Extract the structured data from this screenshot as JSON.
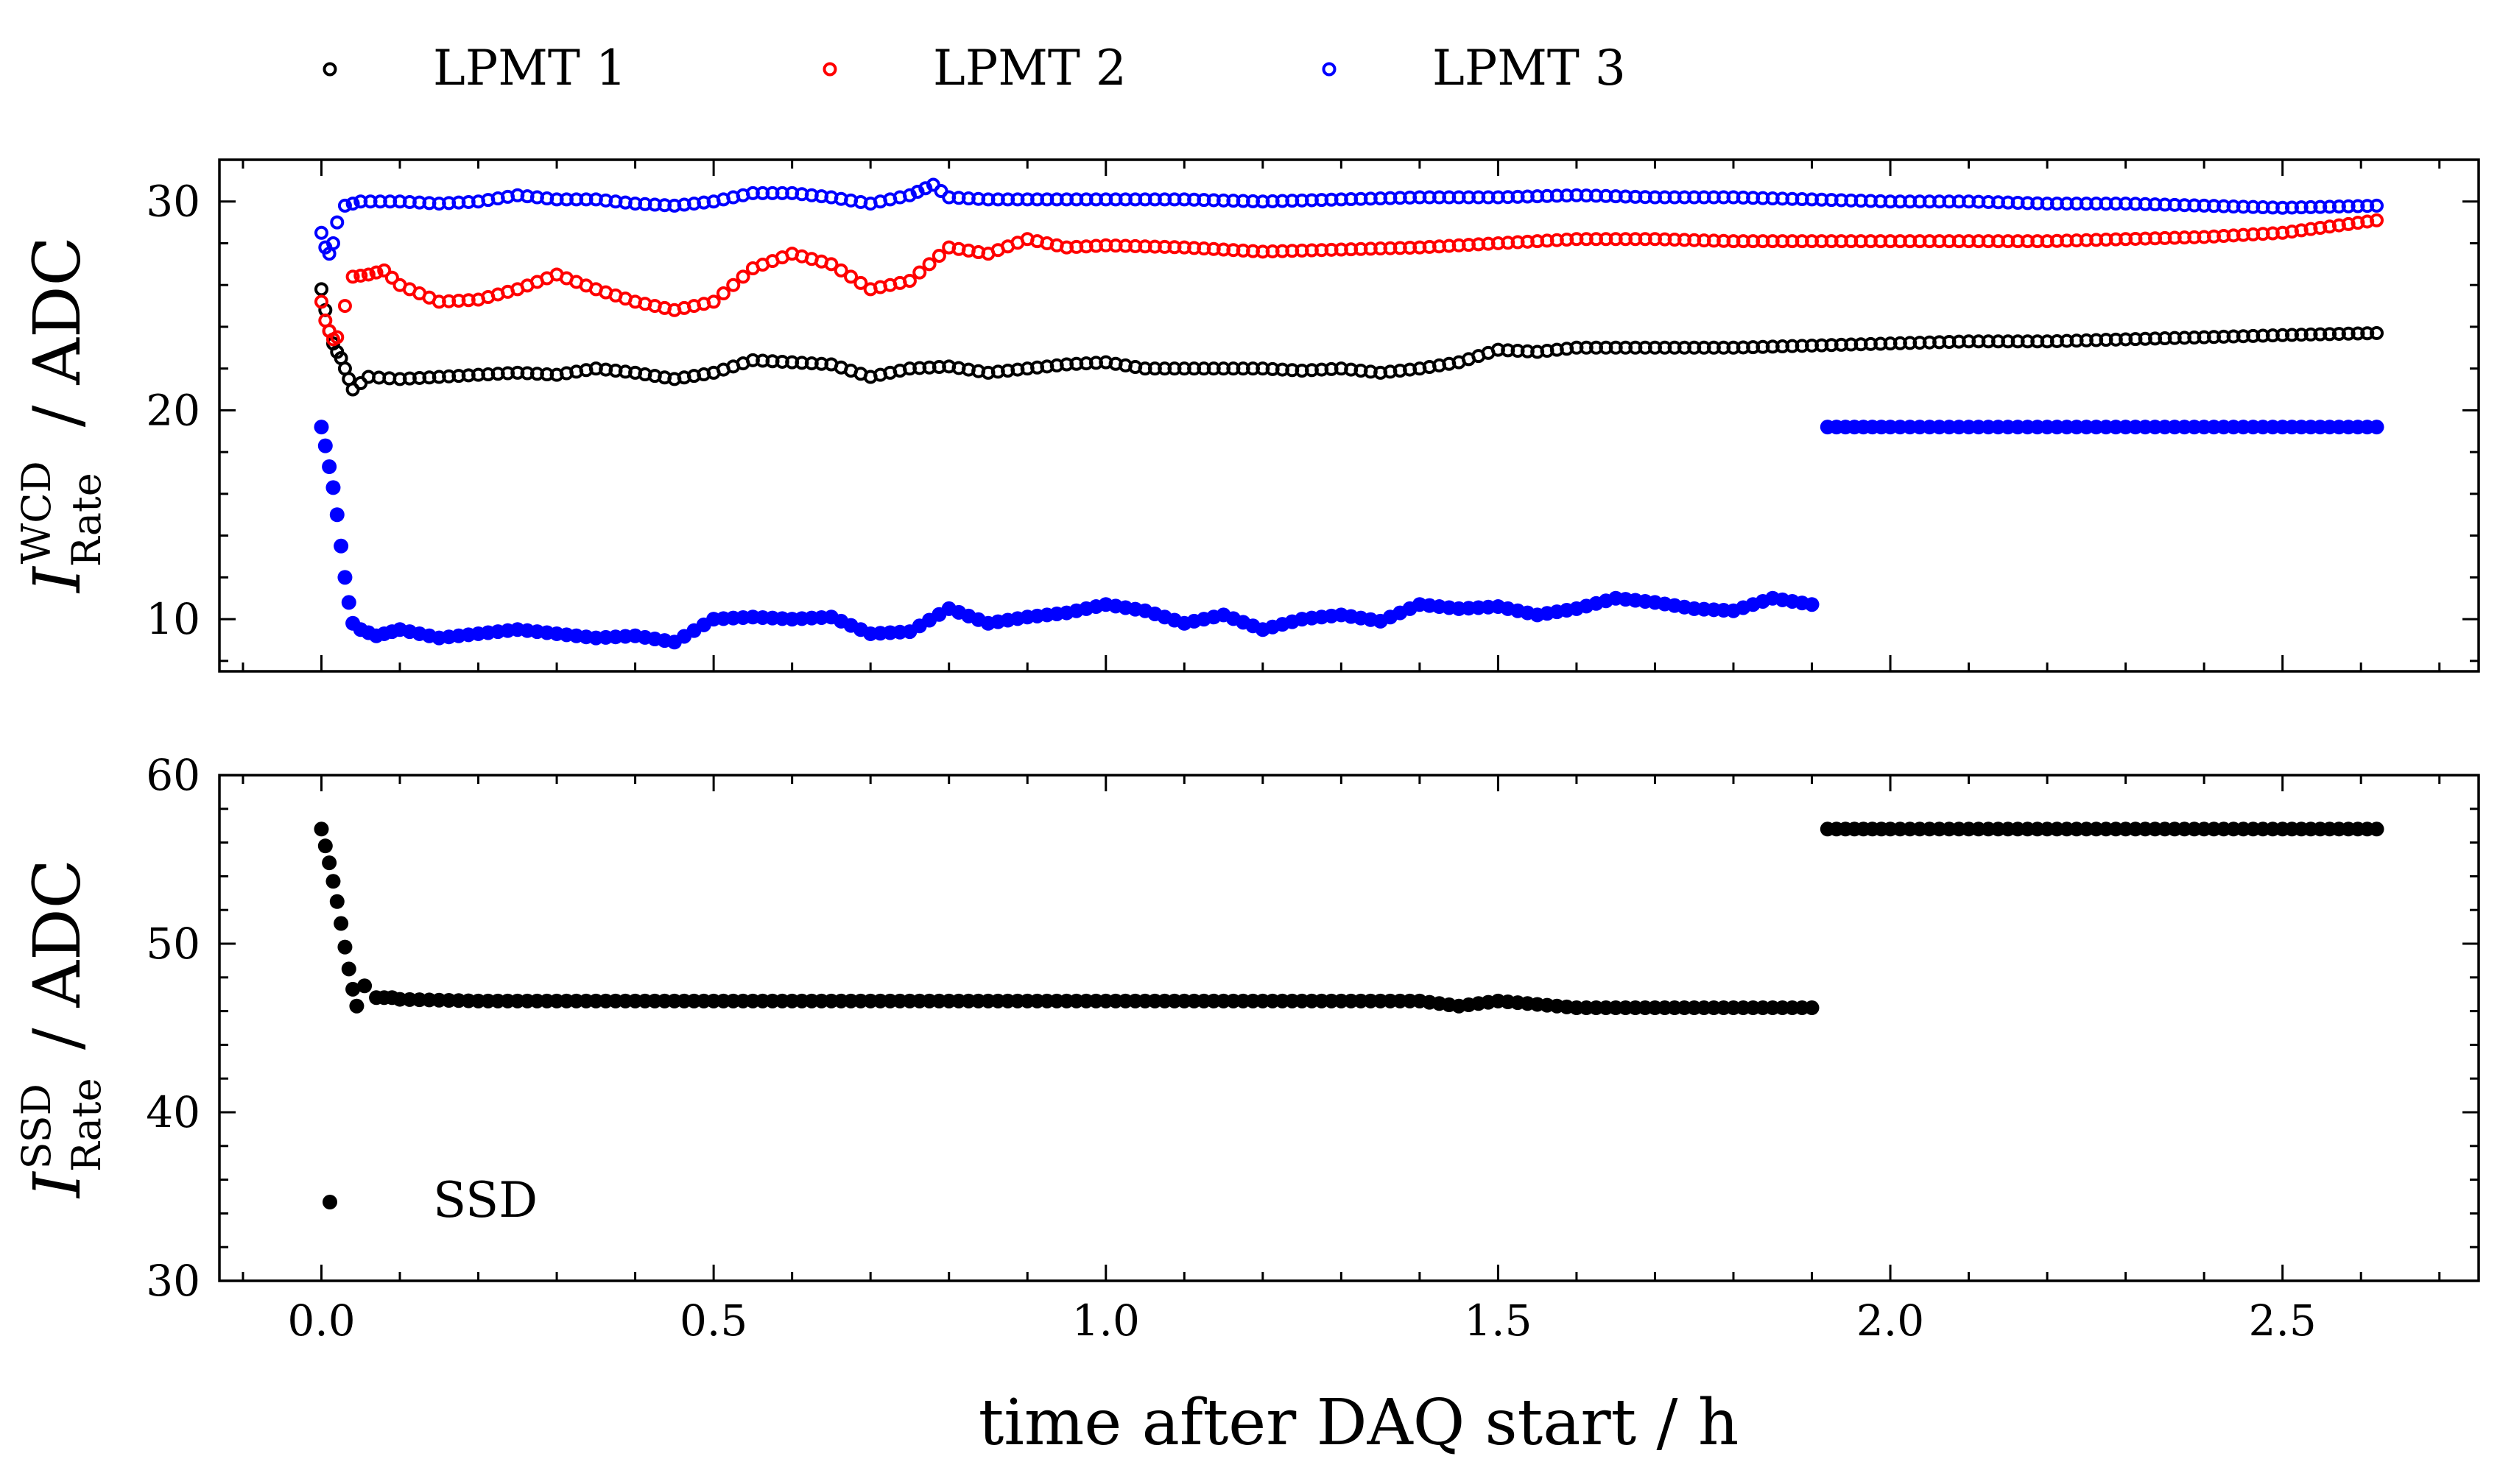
{
  "chart_data": [
    {
      "type": "scatter",
      "panel": "top",
      "ylabel": "I_Rate^WCD / ADC",
      "ylabel_parts": {
        "symbol": "I",
        "sup": "WCD",
        "sub": "Rate",
        "unit": "/ ADC"
      },
      "xlabel": "",
      "xlim": [
        -0.13,
        2.75
      ],
      "ylim": [
        7.5,
        32
      ],
      "yticks": [
        "10",
        "20",
        "30"
      ],
      "ytick_values": [
        10,
        20,
        30
      ],
      "legend_placement": "above",
      "series": [
        {
          "name": "LPMT 1",
          "marker": "open-circle",
          "color": "#000000",
          "points": [
            [
              0,
              25.8
            ],
            [
              0.005,
              24.8
            ],
            [
              0.01,
              23.8
            ],
            [
              0.015,
              23.2
            ],
            [
              0.02,
              22.8
            ],
            [
              0.025,
              22.5
            ],
            [
              0.03,
              22.0
            ],
            [
              0.035,
              21.5
            ],
            [
              0.04,
              21.0
            ],
            [
              0.06,
              21.6
            ],
            [
              0.1,
              21.5
            ],
            [
              0.15,
              21.6
            ],
            [
              0.2,
              21.7
            ],
            [
              0.25,
              21.8
            ],
            [
              0.3,
              21.7
            ],
            [
              0.35,
              22.0
            ],
            [
              0.4,
              21.8
            ],
            [
              0.45,
              21.5
            ],
            [
              0.5,
              21.8
            ],
            [
              0.55,
              22.4
            ],
            [
              0.6,
              22.3
            ],
            [
              0.65,
              22.2
            ],
            [
              0.7,
              21.6
            ],
            [
              0.75,
              22.0
            ],
            [
              0.8,
              22.1
            ],
            [
              0.85,
              21.8
            ],
            [
              0.9,
              22.0
            ],
            [
              0.95,
              22.2
            ],
            [
              1.0,
              22.3
            ],
            [
              1.05,
              22.0
            ],
            [
              1.1,
              22.0
            ],
            [
              1.15,
              22.0
            ],
            [
              1.2,
              22.0
            ],
            [
              1.25,
              21.9
            ],
            [
              1.3,
              22.0
            ],
            [
              1.35,
              21.8
            ],
            [
              1.4,
              22.0
            ],
            [
              1.45,
              22.3
            ],
            [
              1.5,
              22.9
            ],
            [
              1.55,
              22.8
            ],
            [
              1.6,
              23.0
            ],
            [
              1.7,
              23.0
            ],
            [
              1.8,
              23.0
            ],
            [
              1.9,
              23.1
            ],
            [
              2.0,
              23.2
            ],
            [
              2.1,
              23.3
            ],
            [
              2.2,
              23.3
            ],
            [
              2.3,
              23.4
            ],
            [
              2.4,
              23.5
            ],
            [
              2.5,
              23.6
            ],
            [
              2.62,
              23.7
            ]
          ]
        },
        {
          "name": "LPMT 2",
          "marker": "open-circle",
          "color": "#ff0000",
          "points": [
            [
              0,
              25.2
            ],
            [
              0.005,
              24.3
            ],
            [
              0.01,
              23.8
            ],
            [
              0.015,
              23.4
            ],
            [
              0.02,
              23.5
            ],
            [
              0.03,
              25.0
            ],
            [
              0.04,
              26.4
            ],
            [
              0.06,
              26.5
            ],
            [
              0.08,
              26.7
            ],
            [
              0.1,
              26.0
            ],
            [
              0.15,
              25.2
            ],
            [
              0.2,
              25.3
            ],
            [
              0.25,
              25.8
            ],
            [
              0.3,
              26.5
            ],
            [
              0.35,
              25.8
            ],
            [
              0.4,
              25.2
            ],
            [
              0.45,
              24.8
            ],
            [
              0.5,
              25.2
            ],
            [
              0.55,
              26.8
            ],
            [
              0.6,
              27.5
            ],
            [
              0.65,
              27.0
            ],
            [
              0.7,
              25.8
            ],
            [
              0.75,
              26.2
            ],
            [
              0.8,
              27.8
            ],
            [
              0.85,
              27.5
            ],
            [
              0.9,
              28.2
            ],
            [
              0.95,
              27.8
            ],
            [
              1.0,
              27.9
            ],
            [
              1.1,
              27.8
            ],
            [
              1.2,
              27.6
            ],
            [
              1.3,
              27.7
            ],
            [
              1.4,
              27.8
            ],
            [
              1.5,
              28.0
            ],
            [
              1.6,
              28.2
            ],
            [
              1.7,
              28.2
            ],
            [
              1.8,
              28.1
            ],
            [
              1.9,
              28.1
            ],
            [
              2.0,
              28.1
            ],
            [
              2.1,
              28.1
            ],
            [
              2.2,
              28.1
            ],
            [
              2.3,
              28.2
            ],
            [
              2.4,
              28.3
            ],
            [
              2.5,
              28.5
            ],
            [
              2.62,
              29.1
            ]
          ]
        },
        {
          "name": "LPMT 3",
          "marker": "open-circle",
          "color": "#0000ff",
          "points": [
            [
              0,
              28.5
            ],
            [
              0.005,
              27.8
            ],
            [
              0.01,
              27.5
            ],
            [
              0.015,
              28.0
            ],
            [
              0.02,
              29.0
            ],
            [
              0.03,
              29.8
            ],
            [
              0.05,
              30.0
            ],
            [
              0.1,
              30.0
            ],
            [
              0.15,
              29.9
            ],
            [
              0.2,
              30.0
            ],
            [
              0.25,
              30.3
            ],
            [
              0.3,
              30.1
            ],
            [
              0.35,
              30.1
            ],
            [
              0.4,
              29.9
            ],
            [
              0.45,
              29.8
            ],
            [
              0.5,
              30.0
            ],
            [
              0.55,
              30.4
            ],
            [
              0.6,
              30.4
            ],
            [
              0.65,
              30.2
            ],
            [
              0.7,
              29.9
            ],
            [
              0.75,
              30.3
            ],
            [
              0.78,
              30.8
            ],
            [
              0.8,
              30.2
            ],
            [
              0.85,
              30.1
            ],
            [
              0.9,
              30.1
            ],
            [
              0.95,
              30.1
            ],
            [
              1.0,
              30.1
            ],
            [
              1.1,
              30.1
            ],
            [
              1.2,
              30.0
            ],
            [
              1.3,
              30.1
            ],
            [
              1.4,
              30.2
            ],
            [
              1.5,
              30.2
            ],
            [
              1.6,
              30.3
            ],
            [
              1.7,
              30.2
            ],
            [
              1.8,
              30.2
            ],
            [
              1.9,
              30.1
            ],
            [
              2.0,
              30.0
            ],
            [
              2.1,
              30.0
            ],
            [
              2.2,
              29.9
            ],
            [
              2.3,
              29.9
            ],
            [
              2.4,
              29.8
            ],
            [
              2.5,
              29.7
            ],
            [
              2.62,
              29.8
            ]
          ]
        },
        {
          "name": "",
          "marker": "filled-circle",
          "color": "#0000ff",
          "points": [
            [
              0,
              19.2
            ],
            [
              0.005,
              18.3
            ],
            [
              0.01,
              17.3
            ],
            [
              0.015,
              16.3
            ],
            [
              0.02,
              15.0
            ],
            [
              0.025,
              13.5
            ],
            [
              0.03,
              12.0
            ],
            [
              0.035,
              10.8
            ],
            [
              0.04,
              9.8
            ],
            [
              0.05,
              9.5
            ],
            [
              0.07,
              9.2
            ],
            [
              0.1,
              9.5
            ],
            [
              0.15,
              9.1
            ],
            [
              0.2,
              9.3
            ],
            [
              0.25,
              9.5
            ],
            [
              0.3,
              9.3
            ],
            [
              0.35,
              9.1
            ],
            [
              0.4,
              9.2
            ],
            [
              0.45,
              8.9
            ],
            [
              0.5,
              10.0
            ],
            [
              0.55,
              10.1
            ],
            [
              0.6,
              10.0
            ],
            [
              0.65,
              10.1
            ],
            [
              0.7,
              9.3
            ],
            [
              0.75,
              9.4
            ],
            [
              0.8,
              10.5
            ],
            [
              0.85,
              9.8
            ],
            [
              0.9,
              10.1
            ],
            [
              0.95,
              10.3
            ],
            [
              1.0,
              10.7
            ],
            [
              1.05,
              10.4
            ],
            [
              1.1,
              9.8
            ],
            [
              1.15,
              10.2
            ],
            [
              1.2,
              9.5
            ],
            [
              1.25,
              10.0
            ],
            [
              1.3,
              10.2
            ],
            [
              1.35,
              9.9
            ],
            [
              1.4,
              10.7
            ],
            [
              1.45,
              10.5
            ],
            [
              1.5,
              10.6
            ],
            [
              1.55,
              10.2
            ],
            [
              1.6,
              10.5
            ],
            [
              1.65,
              11.0
            ],
            [
              1.7,
              10.8
            ],
            [
              1.75,
              10.5
            ],
            [
              1.8,
              10.4
            ],
            [
              1.85,
              11.0
            ],
            [
              1.9,
              10.7
            ],
            [
              1.92,
              19.2
            ],
            [
              2.0,
              19.2
            ],
            [
              2.1,
              19.2
            ],
            [
              2.2,
              19.2
            ],
            [
              2.3,
              19.2
            ],
            [
              2.4,
              19.2
            ],
            [
              2.5,
              19.2
            ],
            [
              2.62,
              19.2
            ]
          ]
        }
      ]
    },
    {
      "type": "scatter",
      "panel": "bottom",
      "ylabel": "I_Rate^SSD / ADC",
      "ylabel_parts": {
        "symbol": "I",
        "sup": "SSD",
        "sub": "Rate",
        "unit": "/ ADC"
      },
      "xlabel": "time after DAQ start / h",
      "xlim": [
        -0.13,
        2.75
      ],
      "ylim": [
        30,
        60
      ],
      "xticks": [
        "0.0",
        "0.5",
        "1.0",
        "1.5",
        "2.0",
        "2.5"
      ],
      "xtick_values": [
        0,
        0.5,
        1.0,
        1.5,
        2.0,
        2.5
      ],
      "yticks": [
        "30",
        "40",
        "50",
        "60"
      ],
      "ytick_values": [
        30,
        40,
        50,
        60
      ],
      "legend_placement": "lower-left",
      "series": [
        {
          "name": "SSD",
          "marker": "filled-circle",
          "color": "#000000",
          "points": [
            [
              0,
              56.8
            ],
            [
              0.005,
              55.8
            ],
            [
              0.01,
              54.8
            ],
            [
              0.015,
              53.7
            ],
            [
              0.02,
              52.5
            ],
            [
              0.025,
              51.2
            ],
            [
              0.03,
              49.8
            ],
            [
              0.035,
              48.5
            ],
            [
              0.04,
              47.3
            ],
            [
              0.045,
              46.3
            ],
            [
              0.055,
              47.5
            ],
            [
              0.07,
              46.8
            ],
            [
              0.09,
              46.8
            ],
            [
              0.1,
              46.7
            ],
            [
              0.2,
              46.6
            ],
            [
              0.3,
              46.6
            ],
            [
              0.4,
              46.6
            ],
            [
              0.5,
              46.6
            ],
            [
              0.6,
              46.6
            ],
            [
              0.7,
              46.6
            ],
            [
              0.8,
              46.6
            ],
            [
              0.9,
              46.6
            ],
            [
              1.0,
              46.6
            ],
            [
              1.1,
              46.6
            ],
            [
              1.2,
              46.6
            ],
            [
              1.3,
              46.6
            ],
            [
              1.4,
              46.6
            ],
            [
              1.45,
              46.3
            ],
            [
              1.5,
              46.6
            ],
            [
              1.6,
              46.2
            ],
            [
              1.7,
              46.2
            ],
            [
              1.8,
              46.2
            ],
            [
              1.9,
              46.2
            ],
            [
              1.92,
              56.8
            ],
            [
              2.0,
              56.8
            ],
            [
              2.1,
              56.8
            ],
            [
              2.2,
              56.8
            ],
            [
              2.3,
              56.8
            ],
            [
              2.4,
              56.8
            ],
            [
              2.5,
              56.8
            ],
            [
              2.62,
              56.8
            ]
          ]
        }
      ]
    }
  ]
}
